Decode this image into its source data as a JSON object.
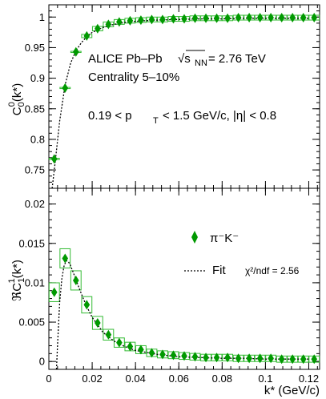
{
  "chart_data": [
    {
      "type": "scatter",
      "panel": "top",
      "ylabel": "C^0_0(k*)",
      "xlim": [
        0,
        0.125
      ],
      "ylim": [
        0.72,
        1.02
      ],
      "y_ticks": [
        "0.75",
        "0.8",
        "0.85",
        "0.9",
        "0.95",
        "1"
      ],
      "y_tick_values": [
        0.75,
        0.8,
        0.85,
        0.9,
        0.95,
        1.0
      ],
      "grid": false,
      "annotations": [
        "ALICE Pb–Pb",
        "√s",
        "NN",
        "= 2.76 TeV",
        "Centrality 5–10%",
        "0.19 < p",
        "T",
        "< 1.5 GeV/c, |η| < 0.8"
      ],
      "series": [
        {
          "marker": "diamond",
          "color": "#009900",
          "x": [
            0.0025,
            0.0075,
            0.0125,
            0.0175,
            0.0225,
            0.0275,
            0.0325,
            0.0375,
            0.0425,
            0.0475,
            0.0525,
            0.0575,
            0.0625,
            0.0675,
            0.0725,
            0.0775,
            0.0825,
            0.0875,
            0.0925,
            0.0975,
            0.1025,
            0.1075,
            0.1125,
            0.1175,
            0.1225
          ],
          "y": [
            0.768,
            0.884,
            0.943,
            0.969,
            0.981,
            0.988,
            0.992,
            0.994,
            0.995,
            0.996,
            0.996,
            0.997,
            0.997,
            0.998,
            0.998,
            0.998,
            0.998,
            0.999,
            0.999,
            0.999,
            0.999,
            0.999,
            0.999,
            0.999,
            0.999
          ]
        },
        {
          "type": "line",
          "style": "dotted",
          "x": [
            0.0015,
            0.003,
            0.005,
            0.0075,
            0.01,
            0.0125,
            0.015,
            0.0175,
            0.02,
            0.025,
            0.03,
            0.035,
            0.04,
            0.045,
            0.05,
            0.06,
            0.07,
            0.08,
            0.09,
            0.1,
            0.11,
            0.12
          ],
          "y": [
            0.72,
            0.765,
            0.83,
            0.889,
            0.924,
            0.945,
            0.958,
            0.968,
            0.975,
            0.983,
            0.988,
            0.991,
            0.993,
            0.994,
            0.995,
            0.996,
            0.997,
            0.997,
            0.998,
            0.998,
            0.998,
            0.998
          ]
        }
      ]
    },
    {
      "type": "scatter",
      "panel": "bottom",
      "xlabel": "k* (GeV/c)",
      "ylabel": "ℜC^1_1(k*)",
      "xlim": [
        0,
        0.125
      ],
      "ylim": [
        -0.001,
        0.022
      ],
      "x_ticks": [
        "0",
        "0.02",
        "0.04",
        "0.06",
        "0.08",
        "0.1",
        "0.12"
      ],
      "x_tick_values": [
        0,
        0.02,
        0.04,
        0.06,
        0.08,
        0.1,
        0.12
      ],
      "y_ticks": [
        "0",
        "0.005",
        "0.01",
        "0.015",
        "0.02"
      ],
      "y_tick_values": [
        0,
        0.005,
        0.01,
        0.015,
        0.02
      ],
      "grid": false,
      "legend": [
        {
          "label": "π⁻K⁻",
          "marker": "diamond"
        },
        {
          "label": "Fit",
          "marker": "dotted-line"
        },
        {
          "label": "χ²/ndf = 2.56",
          "marker": "none"
        }
      ],
      "series": [
        {
          "marker": "diamond",
          "color": "#009900",
          "x": [
            0.0025,
            0.0075,
            0.0125,
            0.0175,
            0.0225,
            0.0275,
            0.0325,
            0.0375,
            0.0425,
            0.0475,
            0.0525,
            0.0575,
            0.0625,
            0.0675,
            0.0725,
            0.0775,
            0.0825,
            0.0875,
            0.0925,
            0.0975,
            0.1025,
            0.1075,
            0.1125,
            0.1175,
            0.1225
          ],
          "y": [
            0.0088,
            0.0131,
            0.0103,
            0.0072,
            0.0049,
            0.0034,
            0.0024,
            0.0019,
            0.0015,
            0.0011,
            0.0009,
            0.0008,
            0.0007,
            0.0006,
            0.0005,
            0.0005,
            0.0005,
            0.0004,
            0.0004,
            0.0004,
            0.0004,
            0.0003,
            0.0003,
            0.0003,
            0.0003
          ]
        },
        {
          "type": "line",
          "style": "dotted",
          "x": [
            0.0035,
            0.004,
            0.005,
            0.006,
            0.007,
            0.008,
            0.009,
            0.01,
            0.012,
            0.014,
            0.016,
            0.018,
            0.02,
            0.025,
            0.03,
            0.035,
            0.04,
            0.05,
            0.06,
            0.07,
            0.08,
            0.09,
            0.1,
            0.11,
            0.12
          ],
          "y": [
            -0.001,
            0.002,
            0.0075,
            0.0105,
            0.0121,
            0.0128,
            0.0127,
            0.0122,
            0.0108,
            0.0093,
            0.0079,
            0.0067,
            0.0056,
            0.0037,
            0.0026,
            0.0019,
            0.0014,
            0.0009,
            0.0006,
            0.0005,
            0.0004,
            0.0004,
            0.0003,
            0.0003,
            0.0003
          ]
        }
      ]
    }
  ],
  "style": {
    "marker_color": "#009900",
    "box_color": "#33bb33"
  }
}
